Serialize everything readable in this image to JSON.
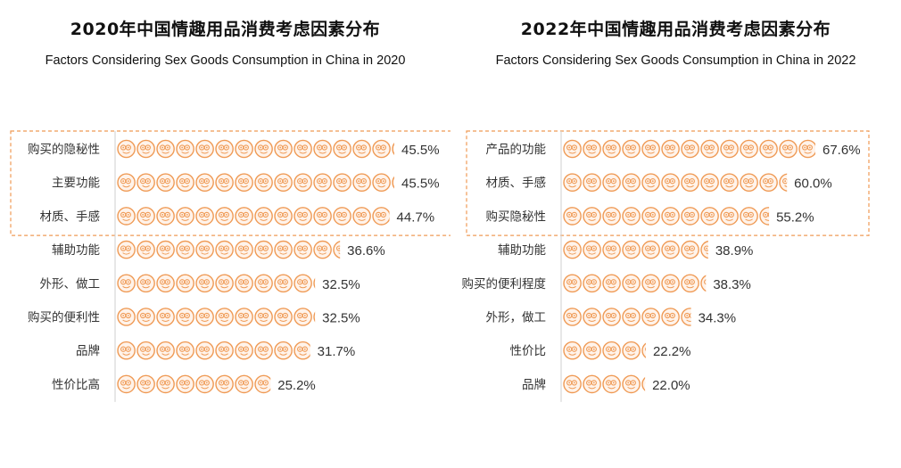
{
  "colors": {
    "icon_stroke": "#ef9a55",
    "icon_fill": "#fff3ea",
    "highlight_border": "#ef9a55",
    "axis": "#cfcfcf"
  },
  "icon": "face-icon",
  "chart_data": [
    {
      "type": "bar",
      "title": "2020年中国情趣用品消费考虑因素分布",
      "subtitle": "Factors Considering Sex Goods Consumption in China in 2020",
      "categories": [
        "购买的隐秘性",
        "主要功能",
        "材质、手感",
        "辅助功能",
        "外形、做工",
        "购买的便利性",
        "品牌",
        "性价比高"
      ],
      "values": [
        45.5,
        45.5,
        44.7,
        36.6,
        32.5,
        32.5,
        31.7,
        25.2
      ],
      "value_labels": [
        "45.5%",
        "45.5%",
        "44.7%",
        "36.6%",
        "32.5%",
        "32.5%",
        "31.7%",
        "25.2%"
      ],
      "highlighted_top": 3,
      "unit": "%"
    },
    {
      "type": "bar",
      "title": "2022年中国情趣用品消费考虑因素分布",
      "subtitle": "Factors Considering Sex Goods Consumption in China in 2022",
      "categories": [
        "产品的功能",
        "材质、手感",
        "购买隐秘性",
        "辅助功能",
        "购买的便利程度",
        "外形，做工",
        "性价比",
        "品牌"
      ],
      "values": [
        67.6,
        60.0,
        55.2,
        38.9,
        38.3,
        34.3,
        22.2,
        22.0
      ],
      "value_labels": [
        "67.6%",
        "60.0%",
        "55.2%",
        "38.9%",
        "38.3%",
        "34.3%",
        "22.2%",
        "22.0%"
      ],
      "highlighted_top": 3,
      "unit": "%"
    }
  ]
}
